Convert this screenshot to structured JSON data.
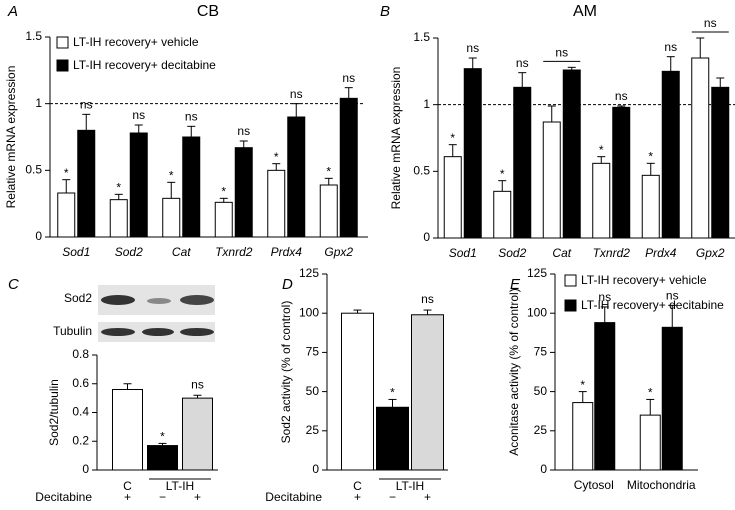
{
  "chart_data": [
    {
      "panel_label": "A",
      "type": "bar",
      "title": "CB",
      "ylabel": "Relative mRNA expression",
      "categories": [
        "Sod1",
        "Sod2",
        "Cat",
        "Txnrd2",
        "Prdx4",
        "Gpx2"
      ],
      "category_style": "italic",
      "series": [
        {
          "name": "LT-IH recovery+ vehicle",
          "color": "#ffffff",
          "values": [
            0.33,
            0.28,
            0.29,
            0.26,
            0.5,
            0.39
          ],
          "errors": [
            0.1,
            0.04,
            0.12,
            0.03,
            0.05,
            0.05
          ],
          "annotations": [
            "*",
            "*",
            "*",
            "*",
            "*",
            "*"
          ]
        },
        {
          "name": "LT-IH recovery+ decitabine",
          "color": "#000000",
          "values": [
            0.8,
            0.78,
            0.75,
            0.67,
            0.9,
            1.04
          ],
          "errors": [
            0.12,
            0.06,
            0.08,
            0.05,
            0.1,
            0.08
          ],
          "annotations": [
            "ns",
            "ns",
            "ns",
            "ns",
            "ns",
            "ns"
          ]
        }
      ],
      "ylim": [
        0,
        1.5
      ],
      "yticks": [
        0,
        0.5,
        1,
        1.5
      ],
      "reference_line": 1,
      "legend": "top-left"
    },
    {
      "panel_label": "B",
      "type": "bar",
      "title": "AM",
      "ylabel": "Relative mRNA expression",
      "categories": [
        "Sod1",
        "Sod2",
        "Cat",
        "Txnrd2",
        "Prdx4",
        "Gpx2"
      ],
      "category_style": "italic",
      "series": [
        {
          "color": "#ffffff",
          "values": [
            0.61,
            0.35,
            0.87,
            0.56,
            0.47,
            1.35
          ],
          "errors": [
            0.09,
            0.08,
            0.12,
            0.05,
            0.09,
            0.15
          ],
          "annotations": [
            "*",
            "*",
            null,
            "*",
            "*",
            null
          ]
        },
        {
          "color": "#000000",
          "values": [
            1.27,
            1.13,
            1.26,
            0.98,
            1.25,
            1.13
          ],
          "errors": [
            0.08,
            0.11,
            0.02,
            0.01,
            0.11,
            0.07
          ],
          "annotations": [
            "ns",
            "ns",
            "ns",
            "ns",
            "ns",
            "ns"
          ]
        }
      ],
      "ylim": [
        0,
        1.5
      ],
      "yticks": [
        0,
        0.5,
        1,
        1.5
      ],
      "reference_line": 1
    },
    {
      "panel_label": "C",
      "type": "bar",
      "ylabel": "Sod2/tubulin",
      "blot_labels": [
        "Sod2",
        "Tubulin"
      ],
      "categories": [
        "C",
        "LT-IH",
        null
      ],
      "values": [
        0.56,
        0.17,
        0.5
      ],
      "errors": [
        0.04,
        0.015,
        0.02
      ],
      "colors": [
        "#ffffff",
        "#000000",
        "#d9d9d9"
      ],
      "annotations": [
        null,
        "*",
        "ns"
      ],
      "treatment_label": "Decitabine",
      "treatment": [
        "+",
        "−",
        "+"
      ],
      "ylim": [
        0,
        0.8
      ],
      "yticks": [
        0,
        0.2,
        0.4,
        0.6,
        0.8
      ]
    },
    {
      "panel_label": "D",
      "type": "bar",
      "ylabel": "Sod2 activity (% of control)",
      "categories": [
        "C",
        "LT-IH",
        null
      ],
      "values": [
        100,
        40,
        99
      ],
      "errors": [
        2,
        5,
        3
      ],
      "colors": [
        "#ffffff",
        "#000000",
        "#d9d9d9"
      ],
      "annotations": [
        null,
        "*",
        "ns"
      ],
      "treatment_label": "Decitabine",
      "treatment": [
        "+",
        "−",
        "+"
      ],
      "ylim": [
        0,
        125
      ],
      "yticks": [
        0,
        25,
        50,
        75,
        100,
        125
      ]
    },
    {
      "panel_label": "E",
      "type": "bar",
      "ylabel": "Aconitase activity (% of control)",
      "categories": [
        "Cytosol",
        "Mitochondria"
      ],
      "series": [
        {
          "name": "LT-IH recovery+ vehicle",
          "color": "#ffffff",
          "values": [
            43,
            35
          ],
          "errors": [
            7,
            10
          ],
          "annotations": [
            "*",
            "*"
          ]
        },
        {
          "name": "LT-IH recovery+ decitabine",
          "color": "#000000",
          "values": [
            94,
            91
          ],
          "errors": [
            10,
            14
          ],
          "annotations": [
            "ns",
            "ns"
          ]
        }
      ],
      "ylim": [
        0,
        125
      ],
      "yticks": [
        0,
        25,
        50,
        75,
        100,
        125
      ],
      "legend": "top-left"
    }
  ]
}
